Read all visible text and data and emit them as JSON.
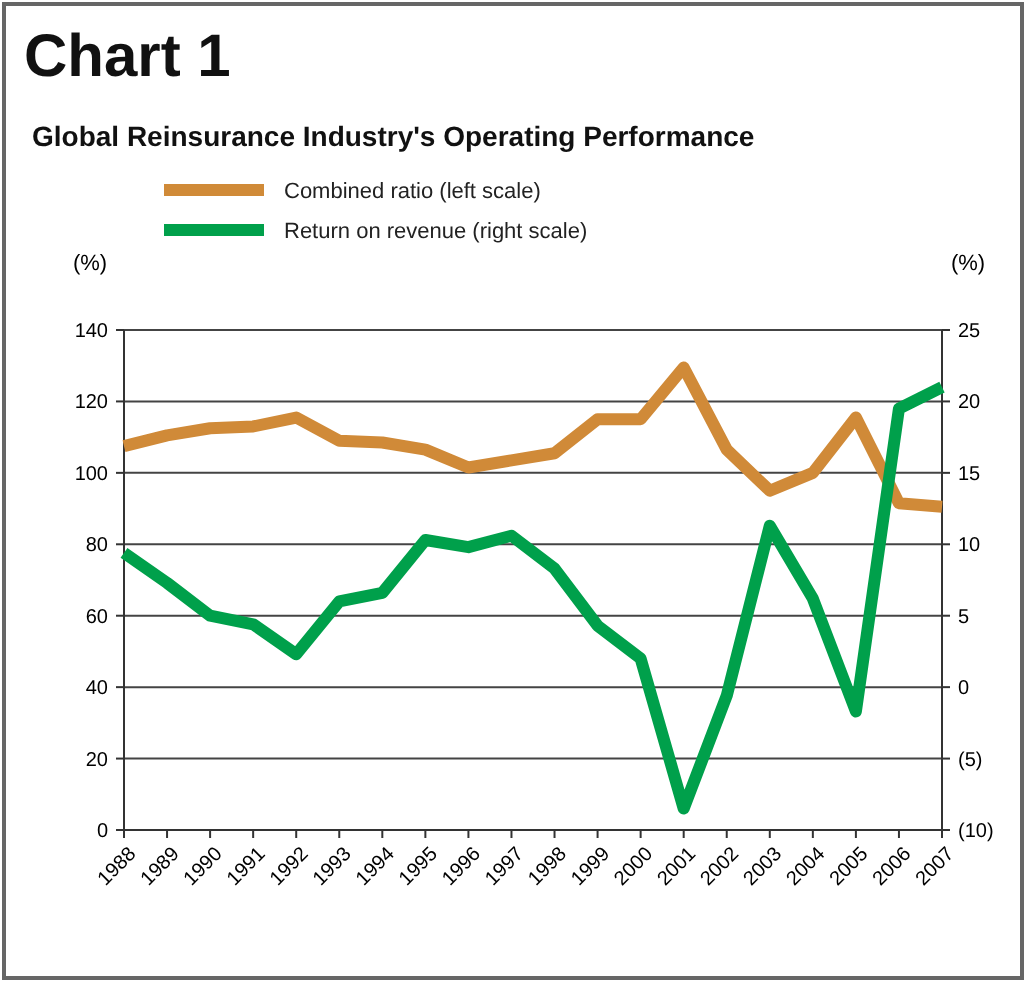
{
  "chart_data": {
    "type": "line",
    "title": "Chart 1",
    "subtitle": "Global Reinsurance Industry's Operating Performance",
    "ylabel": "(%)",
    "y2label": "(%)",
    "categories": [
      "1988",
      "1989",
      "1990",
      "1991",
      "1992",
      "1993",
      "1994",
      "1995",
      "1996",
      "1997",
      "1998",
      "1999",
      "2000",
      "2001",
      "2002",
      "2003",
      "2004",
      "2005",
      "2006",
      "2007"
    ],
    "series": [
      {
        "name": "Combined ratio (left scale)",
        "color": "#d08a38",
        "values": [
          107.5,
          110.5,
          112.5,
          113,
          115.5,
          109,
          108.5,
          106.5,
          101.5,
          103.5,
          105.5,
          115,
          115,
          129.5,
          106.5,
          95,
          100,
          115.5,
          91.5,
          90.5
        ]
      },
      {
        "name": "Return on revenue (right scale)",
        "color": "#00a04b",
        "axis": "y2",
        "values": [
          9.4,
          7.3,
          5,
          4.4,
          2.3,
          6,
          6.6,
          10.3,
          9.8,
          10.6,
          8.3,
          4.3,
          2,
          -8.5,
          -0.6,
          11.3,
          6.2,
          -1.7,
          19.5,
          21
        ]
      }
    ],
    "ylim": [
      0,
      140
    ],
    "yticks": [
      0,
      20,
      40,
      60,
      80,
      100,
      120,
      140
    ],
    "y2lim": [
      -10,
      25
    ],
    "y2ticks": [
      {
        "value": -10,
        "label": "(10)"
      },
      {
        "value": -5,
        "label": "(5)"
      },
      0,
      5,
      10,
      15,
      20,
      25
    ],
    "grid": "y",
    "legend": "top",
    "marker": "none",
    "line_style": "solid"
  }
}
